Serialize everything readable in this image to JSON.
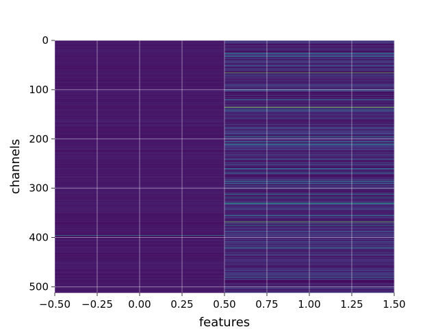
{
  "chart_data": {
    "type": "heatmap",
    "title": "",
    "xlabel": "features",
    "ylabel": "channels",
    "xlim": [
      -0.5,
      1.5
    ],
    "ylim": [
      512,
      0
    ],
    "y_inverted": true,
    "grid": true,
    "colormap": "viridis",
    "columns": 2,
    "rows": 512,
    "x_ticks": [
      {
        "value": -0.5,
        "label": "−0.50"
      },
      {
        "value": -0.25,
        "label": "−0.25"
      },
      {
        "value": 0.0,
        "label": "0.00"
      },
      {
        "value": 0.25,
        "label": "0.25"
      },
      {
        "value": 0.5,
        "label": "0.50"
      },
      {
        "value": 0.75,
        "label": "0.75"
      },
      {
        "value": 1.0,
        "label": "1.00"
      },
      {
        "value": 1.25,
        "label": "1.25"
      },
      {
        "value": 1.5,
        "label": "1.50"
      }
    ],
    "y_ticks": [
      {
        "value": 0,
        "label": "0"
      },
      {
        "value": 100,
        "label": "100"
      },
      {
        "value": 200,
        "label": "200"
      },
      {
        "value": 300,
        "label": "300"
      },
      {
        "value": 400,
        "label": "400"
      },
      {
        "value": 500,
        "label": "500"
      }
    ],
    "column_stats": [
      {
        "feature": 0,
        "typical_value": 0.08,
        "spread": 0.06
      },
      {
        "feature": 1,
        "typical_value": 0.18,
        "spread": 0.22
      }
    ],
    "highlight_rows": [
      {
        "channel": 25,
        "feature": 1,
        "value": 0.55
      },
      {
        "channel": 32,
        "feature": 1,
        "value": 0.5
      },
      {
        "channel": 65,
        "feature": 1,
        "value": 0.85
      },
      {
        "channel": 100,
        "feature": 1,
        "value": 0.45
      },
      {
        "channel": 120,
        "feature": 1,
        "value": 0.5
      },
      {
        "channel": 135,
        "feature": 1,
        "value": 0.9
      },
      {
        "channel": 140,
        "feature": 1,
        "value": 0.6
      },
      {
        "channel": 195,
        "feature": 1,
        "value": 0.55
      },
      {
        "channel": 205,
        "feature": 1,
        "value": 0.5
      },
      {
        "channel": 210,
        "feature": 1,
        "value": 0.6
      },
      {
        "channel": 260,
        "feature": 1,
        "value": 0.55
      },
      {
        "channel": 268,
        "feature": 1,
        "value": 0.5
      },
      {
        "channel": 285,
        "feature": 1,
        "value": 0.6
      },
      {
        "channel": 290,
        "feature": 1,
        "value": 0.55
      },
      {
        "channel": 312,
        "feature": 1,
        "value": 0.55
      },
      {
        "channel": 318,
        "feature": 1,
        "value": 0.5
      },
      {
        "channel": 330,
        "feature": 1,
        "value": 0.75
      },
      {
        "channel": 355,
        "feature": 1,
        "value": 0.5
      },
      {
        "channel": 368,
        "feature": 1,
        "value": 0.85
      },
      {
        "channel": 375,
        "feature": 1,
        "value": 0.6
      },
      {
        "channel": 395,
        "feature": 0,
        "value": 0.55
      },
      {
        "channel": 420,
        "feature": 1,
        "value": 0.55
      },
      {
        "channel": 480,
        "feature": 1,
        "value": 0.5
      }
    ]
  }
}
